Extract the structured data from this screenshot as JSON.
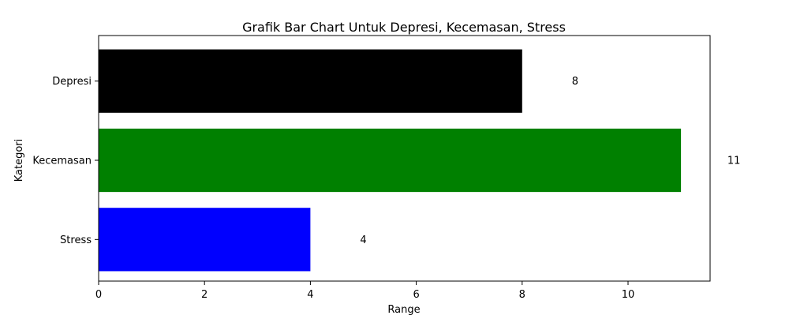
{
  "chart_data": {
    "type": "bar",
    "orientation": "horizontal",
    "title": "Grafik Bar Chart Untuk Depresi, Kecemasan, Stress",
    "xlabel": "Range",
    "ylabel": "Kategori",
    "categories": [
      "Depresi",
      "Kecemasan",
      "Stress"
    ],
    "values": [
      8,
      11,
      4
    ],
    "bar_colors": [
      "#000000",
      "#008000",
      "#0000ff"
    ],
    "data_labels": [
      "8",
      "11",
      "4"
    ],
    "xlim": [
      0,
      11.55
    ],
    "x_ticks": [
      0,
      2,
      4,
      6,
      8,
      10
    ],
    "x_tick_labels": [
      "0",
      "2",
      "4",
      "6",
      "8",
      "10"
    ],
    "grid": false,
    "legend": "none"
  }
}
